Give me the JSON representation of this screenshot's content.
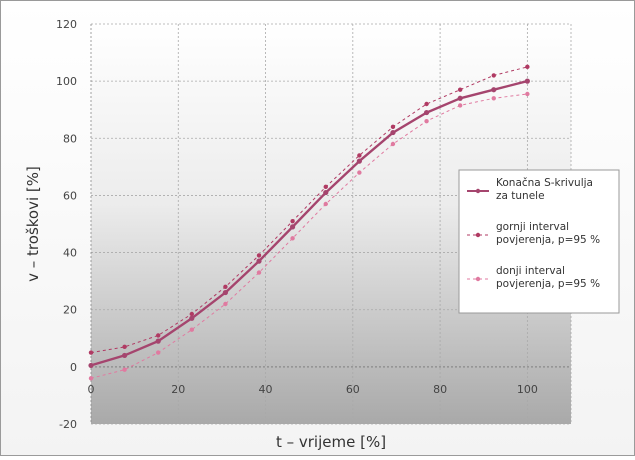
{
  "chart_data": {
    "type": "line",
    "xlabel": "t – vrijeme [%]",
    "ylabel": "v – troškovi [%]",
    "xlim": [
      0,
      110
    ],
    "ylim": [
      -20,
      120
    ],
    "x_ticks": [
      0,
      20,
      40,
      60,
      80,
      100
    ],
    "y_ticks": [
      -20,
      0,
      20,
      40,
      60,
      80,
      100,
      120
    ],
    "grid": true,
    "legend_position": "right",
    "colors": {
      "main": "#a5456e",
      "upper": "#b03a63",
      "lower": "#e07aa0",
      "grid": "#a9a9a9"
    },
    "series": [
      {
        "name": "Konačna S-krivulja za tunele",
        "style": "solid",
        "x": [
          0,
          7.7,
          15.4,
          23.1,
          30.8,
          38.5,
          46.2,
          53.8,
          61.5,
          69.2,
          76.9,
          84.6,
          92.3,
          100
        ],
        "y": [
          0.5,
          4,
          9,
          17,
          26,
          37,
          49,
          61,
          72,
          82,
          89,
          94,
          97,
          100
        ]
      },
      {
        "name": "gornji interval povjerenja, p=95 %",
        "style": "dashed",
        "x": [
          0,
          7.7,
          15.4,
          23.1,
          30.8,
          38.5,
          46.2,
          53.8,
          61.5,
          69.2,
          76.9,
          84.6,
          92.3,
          100
        ],
        "y": [
          5,
          7,
          11,
          18.5,
          28,
          39,
          51,
          63,
          74,
          84,
          92,
          97,
          102,
          105
        ]
      },
      {
        "name": "donji interval povjerenja, p=95 %",
        "style": "dashed",
        "x": [
          0,
          7.7,
          15.4,
          23.1,
          30.8,
          38.5,
          46.2,
          53.8,
          61.5,
          69.2,
          76.9,
          84.6,
          92.3,
          100
        ],
        "y": [
          -4,
          -1,
          5,
          13,
          22,
          33,
          45,
          57,
          68,
          78,
          86,
          91.5,
          94,
          95.5
        ]
      }
    ]
  }
}
